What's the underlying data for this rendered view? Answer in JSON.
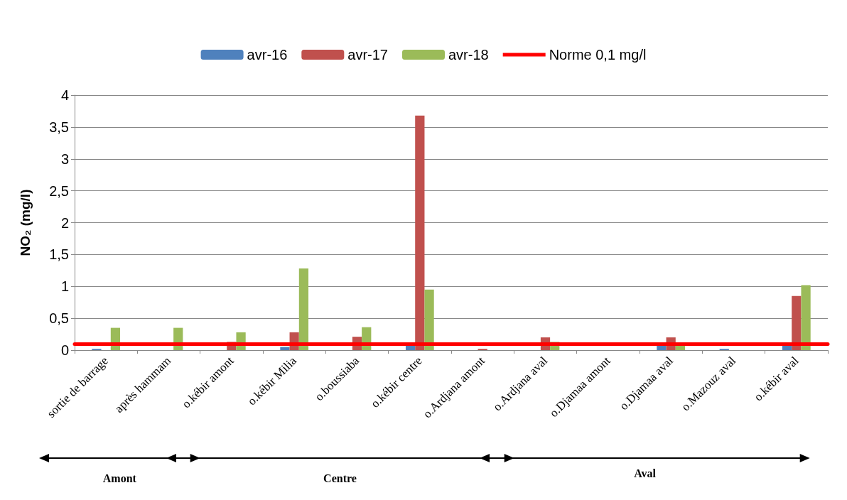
{
  "chart_data": {
    "type": "bar",
    "ylabel": "NO₂ (mg/l)",
    "categories": [
      "sortie de barrage",
      "après hammam",
      "o.kébir amont",
      "o.kébir Milia",
      "o.boussiaba",
      "o.kébir centre",
      "o.Ardjana amont",
      "o.Ardjana aval",
      "o.Djamaa amont",
      "o.Djamaa aval",
      "o.Mazouz aval",
      "o.kébir aval"
    ],
    "series": [
      {
        "name": "avr-16",
        "color": "#4f81bd",
        "values": [
          0.02,
          0,
          0,
          0.05,
          0,
          0.07,
          null,
          null,
          0,
          0.08,
          0.02,
          0.08
        ]
      },
      {
        "name": "avr-17",
        "color": "#c0504d",
        "values": [
          0,
          0,
          0.13,
          0.28,
          0.21,
          3.68,
          0.02,
          0.2,
          0,
          0.2,
          null,
          0.85
        ]
      },
      {
        "name": "avr-18",
        "color": "#9bbb59",
        "values": [
          0.35,
          0.35,
          0.28,
          1.28,
          0.36,
          0.95,
          0,
          0.13,
          0,
          0.08,
          0,
          1.02
        ]
      }
    ],
    "ref_lines": [
      {
        "axis": "y",
        "value": 0.1,
        "label": "Norme 0,1 mg/l",
        "color": "#ff0000"
      }
    ],
    "ylim": [
      0,
      4
    ],
    "yticks": [
      0,
      {
        "value": 0.5,
        "label": "0,5"
      },
      1,
      {
        "value": 1.5,
        "label": "1,5"
      },
      2,
      {
        "value": 2.5,
        "label": "2,5"
      },
      3,
      {
        "value": 3.5,
        "label": "3,5"
      },
      4
    ],
    "grid": "y",
    "legend": "top",
    "annotations": [
      "Amont",
      "Centre",
      "Aval"
    ]
  }
}
